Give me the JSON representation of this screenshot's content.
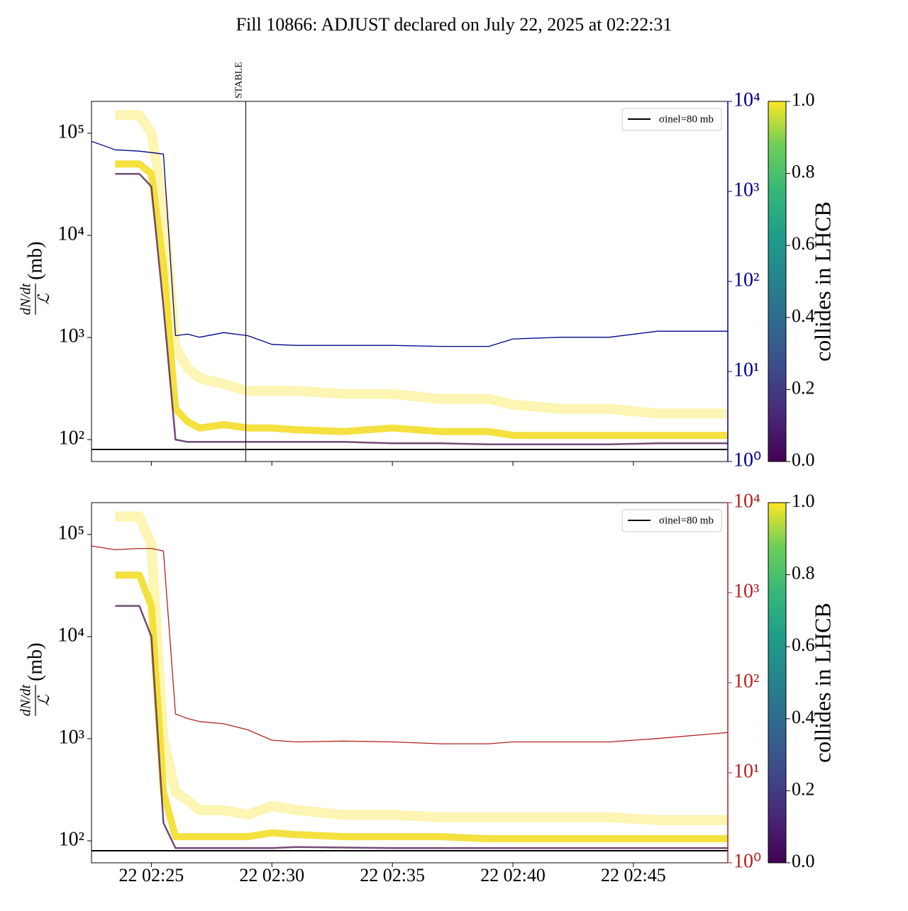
{
  "title": "Fill 10866: ADJUST declared on July 22, 2025 at 02:22:31",
  "chart_data": [
    {
      "type": "line",
      "x": [
        "02:22:31",
        "02:23:30",
        "02:24:30",
        "02:25:00",
        "02:25:30",
        "02:26:00",
        "02:26:30",
        "02:27:00",
        "02:28:00",
        "02:29:00",
        "02:30:00",
        "02:31:00",
        "02:33:00",
        "02:35:00",
        "02:37:00",
        "02:39:00",
        "02:40:00",
        "02:42:00",
        "02:44:00",
        "02:46:00",
        "02:48:55"
      ],
      "xlim": [
        "02:22:31",
        "02:48:55"
      ],
      "ylim": [
        61,
        205000
      ],
      "ylog": true,
      "yticks": [
        {
          "value": 100,
          "label": "10²"
        },
        {
          "value": 1000,
          "label": "10³"
        },
        {
          "value": 10000,
          "label": "10⁴"
        },
        {
          "value": 100000,
          "label": "10⁵"
        }
      ],
      "y2lim": [
        1,
        10000
      ],
      "y2log": true,
      "y2ticks": [
        {
          "value": 1,
          "label": "10⁰"
        },
        {
          "value": 10,
          "label": "10¹"
        },
        {
          "value": 100,
          "label": "10²"
        },
        {
          "value": 1000,
          "label": "10³"
        },
        {
          "value": 10000,
          "label": "10⁴"
        }
      ],
      "ylabel": {
        "numerator": "dN/dt",
        "denominator": "ℒ",
        "unit": "(mb)"
      },
      "series": [
        {
          "color": "#fbf3a6",
          "values": [
            null,
            150000,
            150000,
            100000,
            20000,
            800,
            500,
            400,
            350,
            300,
            300,
            300,
            280,
            280,
            250,
            250,
            220,
            200,
            200,
            180,
            180
          ]
        },
        {
          "color": "#f2dc1e",
          "values": [
            null,
            50000,
            50000,
            40000,
            5000,
            200,
            150,
            130,
            140,
            130,
            130,
            125,
            120,
            130,
            120,
            120,
            110,
            110,
            110,
            110,
            110
          ]
        },
        {
          "color": "#5a2c5e",
          "values": [
            null,
            40000,
            40000,
            30000,
            2000,
            100,
            95,
            95,
            95,
            95,
            95,
            95,
            95,
            92,
            92,
            90,
            90,
            90,
            90,
            92,
            92
          ]
        },
        {
          "axis": "y2",
          "color": "#00008b",
          "values": [
            3600,
            2900,
            2800,
            2700,
            2600,
            25,
            26,
            24,
            27,
            25,
            20,
            19.5,
            19.5,
            19.5,
            19,
            19,
            23,
            24,
            24,
            28,
            28
          ]
        }
      ],
      "hline": {
        "name": "σinel=80 mb",
        "value": 80,
        "color": "#000000"
      },
      "legend": "upper right",
      "vline": {
        "x": "02:28:55",
        "label": "STABLE"
      },
      "colorbar": {
        "label": "collides in LHCB",
        "lim": [
          0,
          1
        ],
        "ticks": [
          {
            "value": 0,
            "label": "0.0"
          },
          {
            "value": 0.2,
            "label": "0.2"
          },
          {
            "value": 0.4,
            "label": "0.4"
          },
          {
            "value": 0.6,
            "label": "0.6"
          },
          {
            "value": 0.8,
            "label": "0.8"
          },
          {
            "value": 1,
            "label": "1.0"
          }
        ]
      }
    },
    {
      "type": "line",
      "x": [
        "02:22:31",
        "02:23:30",
        "02:24:30",
        "02:25:00",
        "02:25:30",
        "02:26:00",
        "02:26:30",
        "02:27:00",
        "02:28:00",
        "02:29:00",
        "02:30:00",
        "02:31:00",
        "02:33:00",
        "02:35:00",
        "02:37:00",
        "02:39:00",
        "02:40:00",
        "02:42:00",
        "02:44:00",
        "02:46:00",
        "02:48:55"
      ],
      "xlim": [
        "02:22:31",
        "02:48:55"
      ],
      "xticks": [
        {
          "value": "02:25:00",
          "label": "22 02:25"
        },
        {
          "value": "02:30:00",
          "label": "22 02:30"
        },
        {
          "value": "02:35:00",
          "label": "22 02:35"
        },
        {
          "value": "02:40:00",
          "label": "22 02:40"
        },
        {
          "value": "02:45:00",
          "label": "22 02:45"
        }
      ],
      "ylim": [
        61,
        205000
      ],
      "ylog": true,
      "yticks": [
        {
          "value": 100,
          "label": "10²"
        },
        {
          "value": 1000,
          "label": "10³"
        },
        {
          "value": 10000,
          "label": "10⁴"
        },
        {
          "value": 100000,
          "label": "10⁵"
        }
      ],
      "y2lim": [
        1,
        10000
      ],
      "y2log": true,
      "y2ticks": [
        {
          "value": 1,
          "label": "10⁰"
        },
        {
          "value": 10,
          "label": "10¹"
        },
        {
          "value": 100,
          "label": "10²"
        },
        {
          "value": 1000,
          "label": "10³"
        },
        {
          "value": 10000,
          "label": "10⁴"
        }
      ],
      "ylabel": {
        "numerator": "dN/dt",
        "denominator": "ℒ",
        "unit": "(mb)"
      },
      "series": [
        {
          "color": "#fbf3a6",
          "values": [
            null,
            150000,
            150000,
            80000,
            1000,
            300,
            250,
            200,
            200,
            180,
            220,
            200,
            180,
            180,
            170,
            170,
            170,
            170,
            170,
            160,
            160
          ]
        },
        {
          "color": "#f2dc1e",
          "values": [
            null,
            40000,
            40000,
            20000,
            300,
            110,
            110,
            110,
            110,
            110,
            120,
            115,
            110,
            110,
            110,
            105,
            105,
            105,
            105,
            105,
            105
          ]
        },
        {
          "color": "#5a2c5e",
          "values": [
            null,
            20000,
            20000,
            10000,
            150,
            85,
            85,
            85,
            85,
            85,
            85,
            87,
            86,
            85,
            85,
            85,
            85,
            85,
            85,
            85,
            85
          ]
        },
        {
          "axis": "y2",
          "color": "#b22222",
          "values": [
            3300,
            3000,
            3100,
            3100,
            2900,
            45,
            40,
            37,
            35,
            30,
            23,
            22,
            22.5,
            22,
            21,
            21,
            22,
            22,
            22,
            24,
            28
          ]
        }
      ],
      "hline": {
        "name": "σinel=80 mb",
        "value": 80,
        "color": "#000000"
      },
      "legend": "upper right",
      "colorbar": {
        "label": "collides in LHCB",
        "lim": [
          0,
          1
        ],
        "ticks": [
          {
            "value": 0,
            "label": "0.0"
          },
          {
            "value": 0.2,
            "label": "0.2"
          },
          {
            "value": 0.4,
            "label": "0.4"
          },
          {
            "value": 0.6,
            "label": "0.6"
          },
          {
            "value": 0.8,
            "label": "0.8"
          },
          {
            "value": 1,
            "label": "1.0"
          }
        ]
      }
    }
  ]
}
